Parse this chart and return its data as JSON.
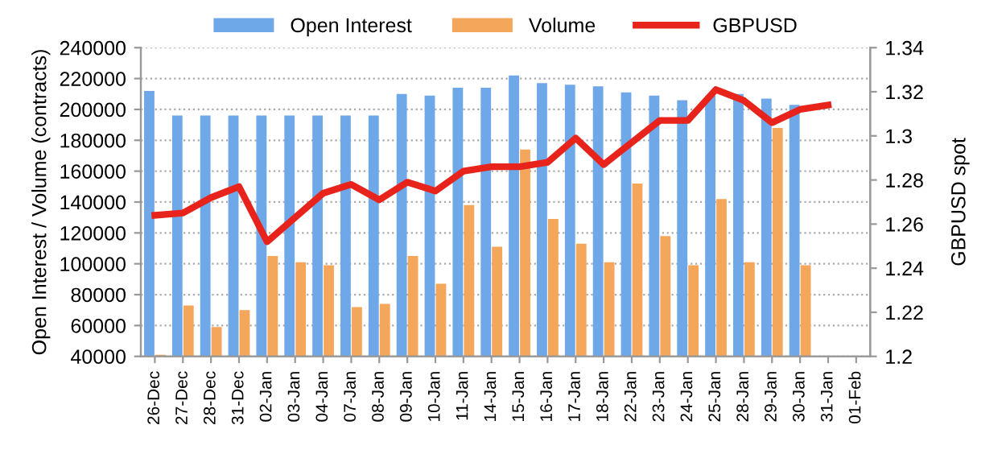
{
  "chart_data": {
    "type": "bar",
    "categories": [
      "26-Dec",
      "27-Dec",
      "28-Dec",
      "31-Dec",
      "02-Jan",
      "03-Jan",
      "04-Jan",
      "07-Jan",
      "08-Jan",
      "09-Jan",
      "10-Jan",
      "11-Jan",
      "14-Jan",
      "15-Jan",
      "16-Jan",
      "17-Jan",
      "18-Jan",
      "22-Jan",
      "23-Jan",
      "24-Jan",
      "25-Jan",
      "28-Jan",
      "29-Jan",
      "30-Jan",
      "31-Jan",
      "01-Feb"
    ],
    "ylabel": "Open Interest / Volume (contracts)",
    "y2label": "GBPUSD spot",
    "ylim": [
      40000,
      240000
    ],
    "yticks": [
      40000,
      60000,
      80000,
      100000,
      120000,
      140000,
      160000,
      180000,
      200000,
      220000,
      240000
    ],
    "y2lim": [
      1.2,
      1.34
    ],
    "y2ticks": [
      {
        "value": 1.2,
        "label": "1.2"
      },
      {
        "value": 1.22,
        "label": "1.22"
      },
      {
        "value": 1.24,
        "label": "1.24"
      },
      {
        "value": 1.26,
        "label": "1.26"
      },
      {
        "value": 1.28,
        "label": "1.28"
      },
      {
        "value": 1.3,
        "label": "1.3"
      },
      {
        "value": 1.32,
        "label": "1.32"
      },
      {
        "value": 1.34,
        "label": "1.34"
      }
    ],
    "grid": "y",
    "legend": "top",
    "series": [
      {
        "name": "Open Interest",
        "color": "#6fa8e8",
        "values": [
          212000,
          196000,
          196000,
          196000,
          196000,
          196000,
          196000,
          196000,
          196000,
          210000,
          209000,
          214000,
          214000,
          222000,
          217000,
          216000,
          215000,
          211000,
          209000,
          206000,
          209000,
          210000,
          207000,
          203000,
          null,
          null
        ]
      },
      {
        "name": "Volume",
        "color": "#f4a65a",
        "values": [
          41000,
          73000,
          59000,
          70000,
          105000,
          101000,
          99000,
          72000,
          74000,
          105000,
          87000,
          138000,
          111000,
          174000,
          129000,
          113000,
          101000,
          152000,
          118000,
          99000,
          142000,
          101000,
          188000,
          99000,
          null,
          null
        ]
      },
      {
        "name": "GBPUSD",
        "type": "line",
        "axis": "y2",
        "color": "#e8231b",
        "values": [
          1.264,
          1.265,
          1.272,
          1.277,
          1.252,
          1.263,
          1.274,
          1.278,
          1.271,
          1.279,
          1.275,
          1.284,
          1.286,
          1.286,
          1.288,
          1.299,
          1.287,
          1.297,
          1.307,
          1.307,
          1.321,
          1.316,
          1.306,
          1.312,
          1.314,
          null
        ]
      }
    ]
  }
}
